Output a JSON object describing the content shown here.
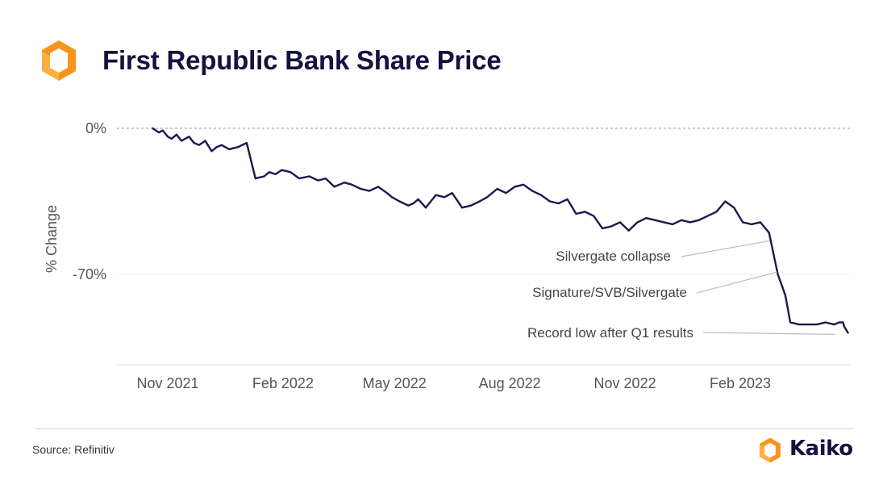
{
  "header": {
    "title": "First Republic Bank Share Price"
  },
  "footer": {
    "source": "Source: Refinitiv",
    "brand": "Kaiko"
  },
  "colors": {
    "line": "#1b1a4b",
    "title": "#14123f",
    "logo_orange": "#f7941d",
    "logo_light": "#fdb913"
  },
  "icons": {
    "logo": "kaiko-logo-icon",
    "brand": "kaiko-logo-icon"
  },
  "chart_data": {
    "type": "line",
    "ylabel": "% Change",
    "yticks": [
      {
        "value": 0,
        "label": "0%"
      },
      {
        "value": -70,
        "label": "-70%"
      }
    ],
    "ylim": [
      -113,
      2
    ],
    "reference_line": 0,
    "xticks": [
      {
        "date": "2021-11-01",
        "label": "Nov 2021"
      },
      {
        "date": "2022-02-01",
        "label": "Feb 2022"
      },
      {
        "date": "2022-05-01",
        "label": "May 2022"
      },
      {
        "date": "2022-08-01",
        "label": "Aug 2022"
      },
      {
        "date": "2022-11-01",
        "label": "Nov 2022"
      },
      {
        "date": "2023-02-01",
        "label": "Feb 2023"
      }
    ],
    "xlim": [
      "2021-09-25",
      "2023-06-15"
    ],
    "series": [
      {
        "x": [
          "2021-10-20",
          "2021-10-25",
          "2021-10-28",
          "2021-11-01",
          "2021-11-04",
          "2021-11-08",
          "2021-11-12",
          "2021-11-18",
          "2021-11-22",
          "2021-11-26",
          "2021-12-01",
          "2021-12-06",
          "2021-12-10",
          "2021-12-14",
          "2021-12-20",
          "2021-12-27",
          "2022-01-03",
          "2022-01-10",
          "2022-01-17",
          "2022-01-21",
          "2022-01-26",
          "2022-01-31",
          "2022-02-07",
          "2022-02-14",
          "2022-02-22",
          "2022-03-01",
          "2022-03-07",
          "2022-03-14",
          "2022-03-22",
          "2022-03-28",
          "2022-04-04",
          "2022-04-11",
          "2022-04-18",
          "2022-04-25",
          "2022-04-29",
          "2022-05-05",
          "2022-05-12",
          "2022-05-16",
          "2022-05-20",
          "2022-05-26",
          "2022-06-03",
          "2022-06-10",
          "2022-06-16",
          "2022-06-24",
          "2022-07-01",
          "2022-07-08",
          "2022-07-14",
          "2022-07-22",
          "2022-07-29",
          "2022-08-05",
          "2022-08-12",
          "2022-08-19",
          "2022-08-26",
          "2022-09-02",
          "2022-09-09",
          "2022-09-16",
          "2022-09-23",
          "2022-09-30",
          "2022-10-07",
          "2022-10-14",
          "2022-10-21",
          "2022-10-28",
          "2022-11-04",
          "2022-11-11",
          "2022-11-18",
          "2022-11-25",
          "2022-12-02",
          "2022-12-09",
          "2022-12-16",
          "2022-12-23",
          "2022-12-30",
          "2023-01-06",
          "2023-01-13",
          "2023-01-20",
          "2023-01-27",
          "2023-02-03",
          "2023-02-10",
          "2023-02-17",
          "2023-02-24",
          "2023-03-03",
          "2023-03-06",
          "2023-03-09",
          "2023-03-13",
          "2023-03-20",
          "2023-03-27",
          "2023-04-03",
          "2023-04-10",
          "2023-04-17",
          "2023-04-21",
          "2023-04-24",
          "2023-04-25",
          "2023-04-28"
        ],
        "values": [
          0,
          -2,
          -1,
          -4,
          -5,
          -3,
          -6,
          -4,
          -7,
          -8,
          -6,
          -11,
          -9,
          -8,
          -10,
          -9,
          -7,
          -24,
          -23,
          -21,
          -22,
          -20,
          -21,
          -24,
          -23,
          -25,
          -24,
          -28,
          -26,
          -27,
          -29,
          -30,
          -28,
          -31,
          -33,
          -35,
          -37,
          -36,
          -34,
          -38,
          -32,
          -33,
          -31,
          -38,
          -37,
          -35,
          -33,
          -29,
          -31,
          -28,
          -27,
          -30,
          -32,
          -35,
          -36,
          -34,
          -41,
          -40,
          -42,
          -48,
          -47,
          -45,
          -49,
          -45,
          -43,
          -44,
          -45,
          -46,
          -44,
          -45,
          -44,
          -42,
          -40,
          -35,
          -38,
          -45,
          -46,
          -45,
          -50,
          -70,
          -75,
          -80,
          -93,
          -94,
          -94,
          -94,
          -93,
          -94,
          -93,
          -93,
          -95,
          -98
        ]
      }
    ],
    "annotations": [
      {
        "text": "Silvergate collapse",
        "date": "2023-03-03",
        "value": -50
      },
      {
        "text": "Signature/SVB/Silvergate",
        "date": "2023-03-09",
        "value": -65
      },
      {
        "text": "Record low after Q1 results",
        "date": "2023-04-25",
        "value": -98
      }
    ]
  }
}
